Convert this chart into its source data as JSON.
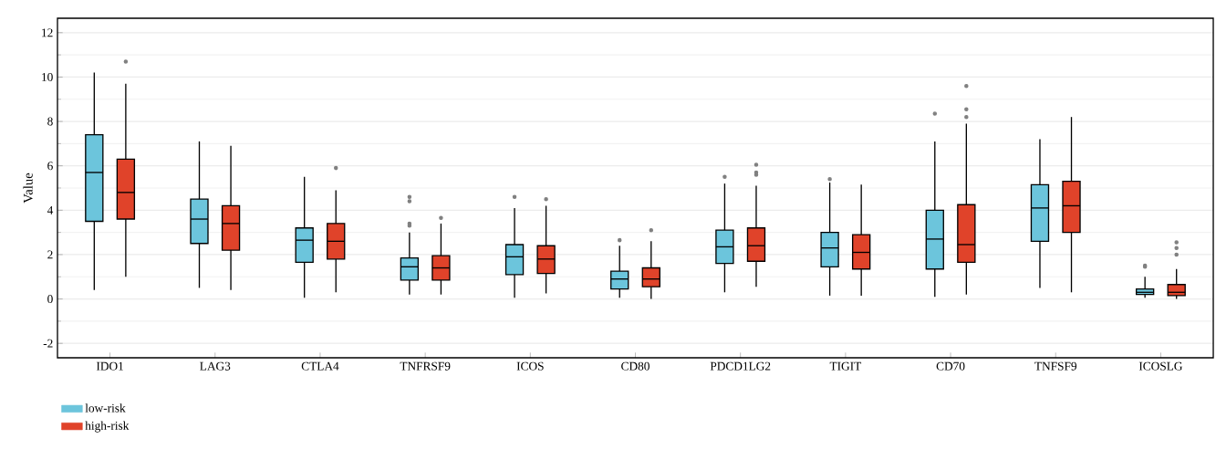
{
  "chart_data": {
    "type": "box",
    "ylabel": "Value",
    "categories": [
      "IDO1",
      "LAG3",
      "CTLA4",
      "TNFRSF9",
      "ICOS",
      "CD80",
      "PDCD1LG2",
      "TIGIT",
      "CD70",
      "TNFSF9",
      "ICOSLG"
    ],
    "ylim": [
      -2.65,
      12.65
    ],
    "yticks": [
      -2,
      0,
      2,
      4,
      6,
      8,
      10,
      12
    ],
    "grid": "y",
    "legend": "bottom left",
    "series": [
      {
        "name": "low-risk",
        "color": "#6cc5dc",
        "boxes": [
          {
            "low": 0.4,
            "q1": 3.5,
            "median": 5.7,
            "q3": 7.4,
            "high": 10.2
          },
          {
            "low": 0.5,
            "q1": 2.5,
            "median": 3.6,
            "q3": 4.5,
            "high": 7.1
          },
          {
            "low": 0.05,
            "q1": 1.65,
            "median": 2.65,
            "q3": 3.2,
            "high": 5.5
          },
          {
            "low": 0.2,
            "q1": 0.85,
            "median": 1.45,
            "q3": 1.85,
            "high": 3.0,
            "outliers": [
              3.3,
              3.4,
              4.4,
              4.6
            ]
          },
          {
            "low": 0.05,
            "q1": 1.1,
            "median": 1.9,
            "q3": 2.45,
            "high": 4.1,
            "outliers": [
              4.6
            ]
          },
          {
            "low": 0.05,
            "q1": 0.45,
            "median": 0.9,
            "q3": 1.25,
            "high": 2.4,
            "outliers": [
              2.65
            ]
          },
          {
            "low": 0.3,
            "q1": 1.6,
            "median": 2.35,
            "q3": 3.1,
            "high": 5.2,
            "outliers": [
              5.5
            ]
          },
          {
            "low": 0.15,
            "q1": 1.45,
            "median": 2.3,
            "q3": 3.0,
            "high": 5.25,
            "outliers": [
              5.4
            ]
          },
          {
            "low": 0.1,
            "q1": 1.35,
            "median": 2.7,
            "q3": 4.0,
            "high": 7.1,
            "outliers": [
              8.35
            ]
          },
          {
            "low": 0.5,
            "q1": 2.6,
            "median": 4.1,
            "q3": 5.15,
            "high": 7.2
          },
          {
            "low": 0.05,
            "q1": 0.2,
            "median": 0.3,
            "q3": 0.45,
            "high": 1.0,
            "outliers": [
              1.45,
              1.5
            ]
          }
        ]
      },
      {
        "name": "high-risk",
        "color": "#e0432a",
        "boxes": [
          {
            "low": 1.0,
            "q1": 3.6,
            "median": 4.8,
            "q3": 6.3,
            "high": 9.7,
            "outliers": [
              10.7
            ]
          },
          {
            "low": 0.4,
            "q1": 2.2,
            "median": 3.4,
            "q3": 4.2,
            "high": 6.9
          },
          {
            "low": 0.3,
            "q1": 1.8,
            "median": 2.6,
            "q3": 3.4,
            "high": 4.9,
            "outliers": [
              5.9
            ]
          },
          {
            "low": 0.2,
            "q1": 0.85,
            "median": 1.4,
            "q3": 1.95,
            "high": 3.4,
            "outliers": [
              3.65
            ]
          },
          {
            "low": 0.25,
            "q1": 1.15,
            "median": 1.8,
            "q3": 2.4,
            "high": 4.2,
            "outliers": [
              4.5
            ]
          },
          {
            "low": 0.0,
            "q1": 0.55,
            "median": 0.9,
            "q3": 1.4,
            "high": 2.6,
            "outliers": [
              3.1
            ]
          },
          {
            "low": 0.55,
            "q1": 1.7,
            "median": 2.4,
            "q3": 3.2,
            "high": 5.1,
            "outliers": [
              5.6,
              5.7,
              6.05
            ]
          },
          {
            "low": 0.15,
            "q1": 1.35,
            "median": 2.1,
            "q3": 2.9,
            "high": 5.15
          },
          {
            "low": 0.2,
            "q1": 1.65,
            "median": 2.45,
            "q3": 4.25,
            "high": 7.9,
            "outliers": [
              8.2,
              8.55,
              9.6
            ]
          },
          {
            "low": 0.3,
            "q1": 3.0,
            "median": 4.2,
            "q3": 5.3,
            "high": 8.2
          },
          {
            "low": 0.0,
            "q1": 0.15,
            "median": 0.3,
            "q3": 0.65,
            "high": 1.35,
            "outliers": [
              2.0,
              2.3,
              2.55
            ]
          }
        ]
      }
    ]
  }
}
